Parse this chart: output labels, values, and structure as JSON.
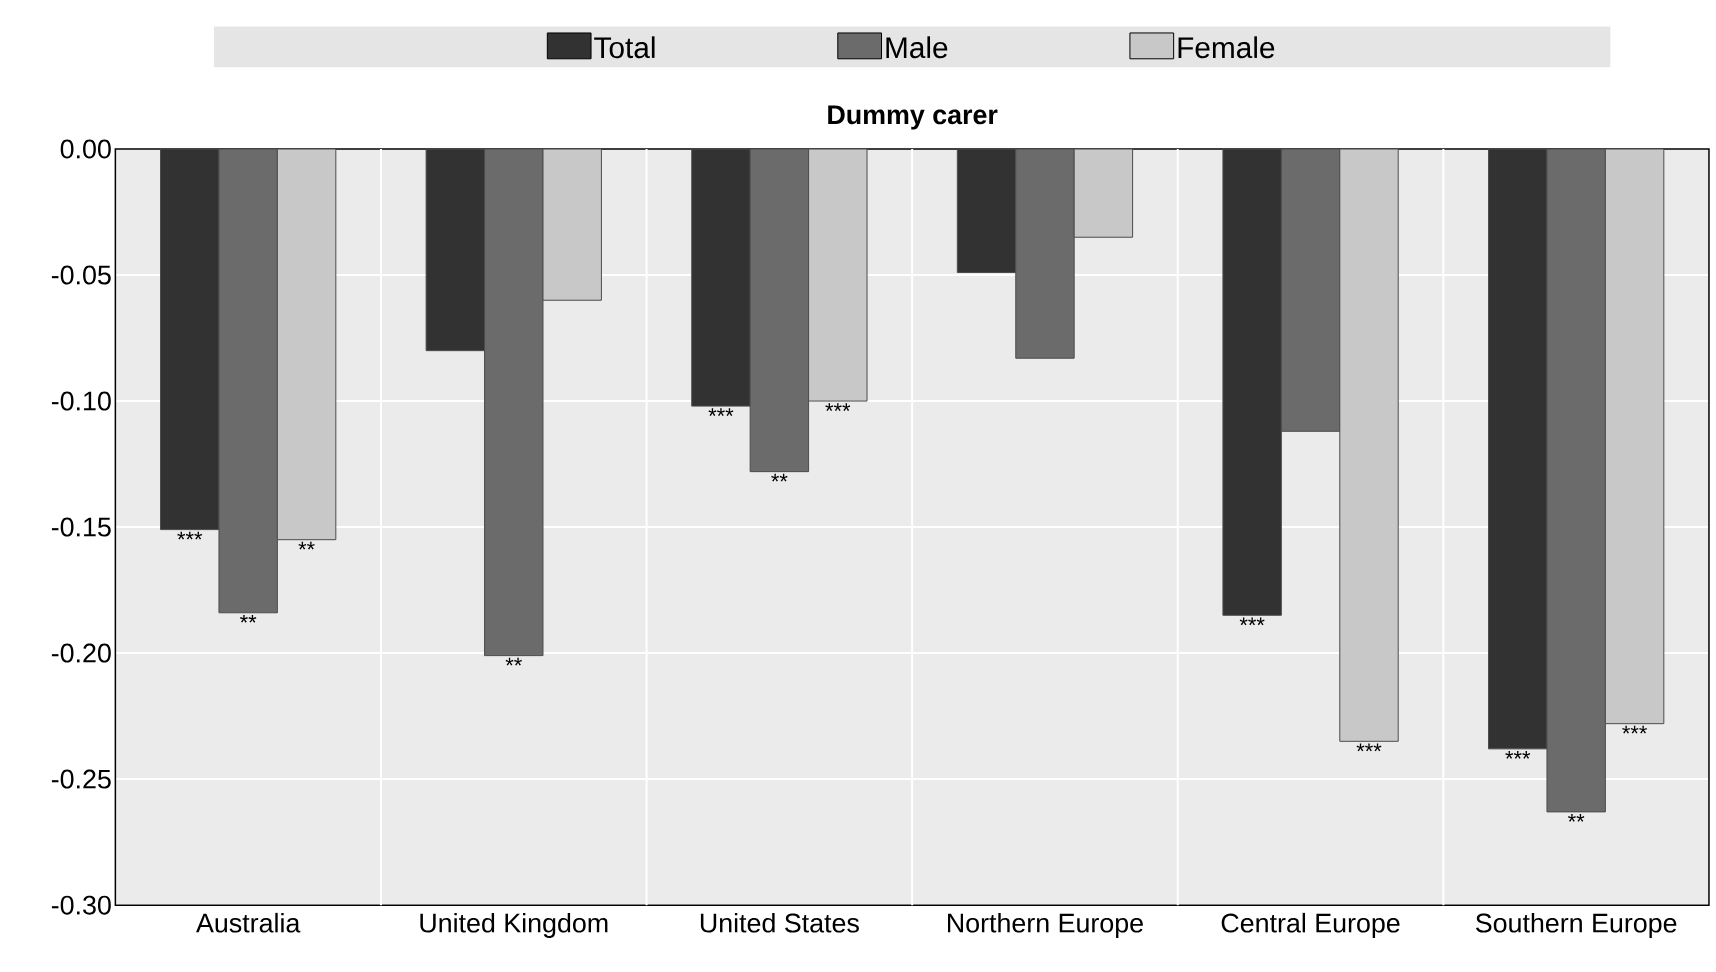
{
  "chart_data": {
    "type": "bar",
    "title": "Dummy carer",
    "categories": [
      "Australia",
      "United Kingdom",
      "United States",
      "Northern Europe",
      "Central Europe",
      "Southern Europe"
    ],
    "series": [
      {
        "name": "Total",
        "color": "#333233",
        "values": [
          -0.151,
          -0.08,
          -0.102,
          -0.049,
          -0.185,
          -0.238
        ],
        "value_labels": [
          "***",
          null,
          "***",
          null,
          "***",
          "***"
        ]
      },
      {
        "name": "Male",
        "color": "#6b6b6b",
        "values": [
          -0.184,
          -0.201,
          -0.128,
          -0.083,
          -0.112,
          -0.263
        ],
        "value_labels": [
          "**",
          "**",
          "**",
          null,
          null,
          "**"
        ]
      },
      {
        "name": "Female",
        "color": "#c8c8c8",
        "values": [
          -0.155,
          -0.06,
          -0.1,
          -0.035,
          -0.235,
          -0.228
        ],
        "value_labels": [
          "**",
          null,
          "***",
          null,
          "***",
          "***"
        ]
      }
    ],
    "ylim": [
      -0.3,
      0.0
    ],
    "yticks": [
      {
        "value": -0.3,
        "label": "-0.30"
      },
      {
        "value": -0.25,
        "label": "-0.25"
      },
      {
        "value": -0.2,
        "label": "-0.20"
      },
      {
        "value": -0.15,
        "label": "-0.15"
      },
      {
        "value": -0.1,
        "label": "-0.10"
      },
      {
        "value": -0.05,
        "label": "-0.05"
      },
      {
        "value": 0.0,
        "label": "0.00"
      }
    ],
    "grid": true,
    "legend": "top"
  }
}
